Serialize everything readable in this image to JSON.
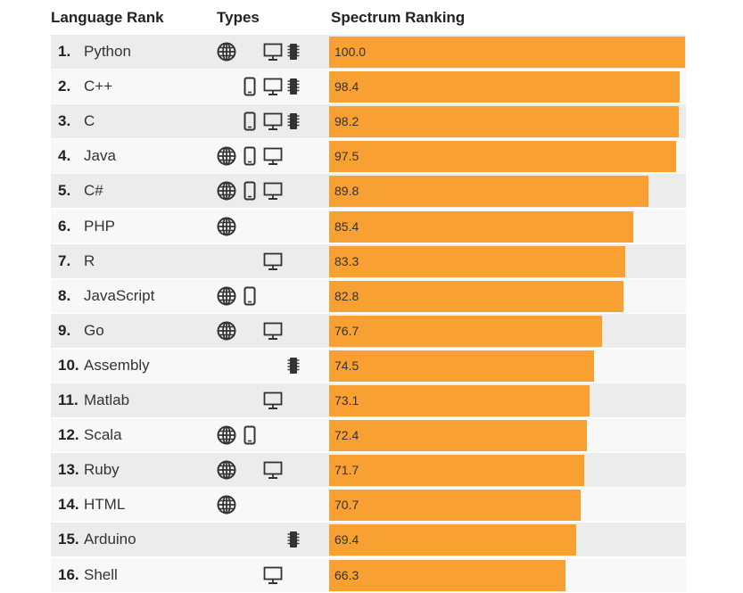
{
  "headers": {
    "language_rank": "Language Rank",
    "types": "Types",
    "spectrum_ranking": "Spectrum Ranking"
  },
  "colors": {
    "bar": "#f9a033",
    "row_odd": "#ececec",
    "row_even": "#f8f8f8",
    "icon": "#333333"
  },
  "icon_legend": [
    "globe-icon",
    "mobile-icon",
    "desktop-icon",
    "chip-icon"
  ],
  "chart_data": {
    "type": "bar",
    "orientation": "horizontal",
    "value_max": 100,
    "rows": [
      {
        "rank": "1.",
        "language": "Python",
        "value": 100.0,
        "value_label": "100.0",
        "types": [
          "web",
          "desktop",
          "embedded"
        ]
      },
      {
        "rank": "2.",
        "language": "C++",
        "value": 98.4,
        "value_label": "98.4",
        "types": [
          "mobile",
          "desktop",
          "embedded"
        ]
      },
      {
        "rank": "3.",
        "language": "C",
        "value": 98.2,
        "value_label": "98.2",
        "types": [
          "mobile",
          "desktop",
          "embedded"
        ]
      },
      {
        "rank": "4.",
        "language": "Java",
        "value": 97.5,
        "value_label": "97.5",
        "types": [
          "web",
          "mobile",
          "desktop"
        ]
      },
      {
        "rank": "5.",
        "language": "C#",
        "value": 89.8,
        "value_label": "89.8",
        "types": [
          "web",
          "mobile",
          "desktop"
        ]
      },
      {
        "rank": "6.",
        "language": "PHP",
        "value": 85.4,
        "value_label": "85.4",
        "types": [
          "web"
        ]
      },
      {
        "rank": "7.",
        "language": "R",
        "value": 83.3,
        "value_label": "83.3",
        "types": [
          "desktop"
        ]
      },
      {
        "rank": "8.",
        "language": "JavaScript",
        "value": 82.8,
        "value_label": "82.8",
        "types": [
          "web",
          "mobile"
        ]
      },
      {
        "rank": "9.",
        "language": "Go",
        "value": 76.7,
        "value_label": "76.7",
        "types": [
          "web",
          "desktop"
        ]
      },
      {
        "rank": "10.",
        "language": "Assembly",
        "value": 74.5,
        "value_label": "74.5",
        "types": [
          "embedded"
        ]
      },
      {
        "rank": "11.",
        "language": "Matlab",
        "value": 73.1,
        "value_label": "73.1",
        "types": [
          "desktop"
        ]
      },
      {
        "rank": "12.",
        "language": "Scala",
        "value": 72.4,
        "value_label": "72.4",
        "types": [
          "web",
          "mobile"
        ]
      },
      {
        "rank": "13.",
        "language": "Ruby",
        "value": 71.7,
        "value_label": "71.7",
        "types": [
          "web",
          "desktop"
        ]
      },
      {
        "rank": "14.",
        "language": "HTML",
        "value": 70.7,
        "value_label": "70.7",
        "types": [
          "web"
        ]
      },
      {
        "rank": "15.",
        "language": "Arduino",
        "value": 69.4,
        "value_label": "69.4",
        "types": [
          "embedded"
        ]
      },
      {
        "rank": "16.",
        "language": "Shell",
        "value": 66.3,
        "value_label": "66.3",
        "types": [
          "desktop"
        ]
      }
    ]
  }
}
